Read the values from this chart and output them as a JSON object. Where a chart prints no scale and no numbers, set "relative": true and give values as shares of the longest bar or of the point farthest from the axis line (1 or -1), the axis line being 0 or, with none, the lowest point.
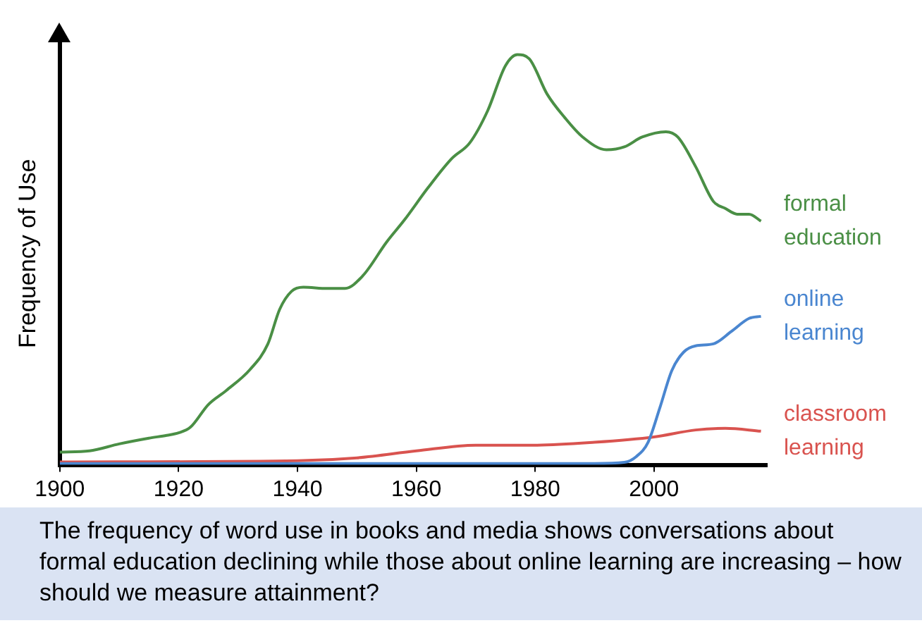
{
  "chart_data": {
    "type": "line",
    "relative": true,
    "ylabel": "Frequency of Use",
    "xlim": [
      1900,
      2019
    ],
    "xticks": [
      1900,
      1920,
      1940,
      1960,
      1980,
      2000
    ],
    "marker": "none",
    "legend": false,
    "annotations": [
      "The frequency of word use in books and media shows conversations about formal education declining while those about online learning are increasing – how should we measure attainment?"
    ],
    "series": [
      {
        "name": "formal education",
        "color": "#4a8f45",
        "x": [
          1900,
          1905,
          1910,
          1915,
          1918,
          1920,
          1922,
          1925,
          1928,
          1932,
          1935,
          1937,
          1939,
          1941,
          1945,
          1948,
          1951,
          1955,
          1958,
          1962,
          1966,
          1969,
          1972,
          1975,
          1977,
          1979,
          1982,
          1985,
          1988,
          1992,
          1995,
          1998,
          2002,
          2004,
          2007,
          2010,
          2012,
          2014,
          2016,
          2018
        ],
        "values": [
          0.031,
          0.034,
          0.051,
          0.065,
          0.072,
          0.078,
          0.092,
          0.147,
          0.181,
          0.232,
          0.294,
          0.379,
          0.423,
          0.433,
          0.43,
          0.43,
          0.461,
          0.543,
          0.597,
          0.676,
          0.747,
          0.785,
          0.863,
          0.973,
          1.0,
          0.99,
          0.904,
          0.846,
          0.799,
          0.768,
          0.775,
          0.799,
          0.812,
          0.799,
          0.727,
          0.642,
          0.625,
          0.611,
          0.611,
          0.594
        ]
      },
      {
        "name": "online learning",
        "color": "#4a86d0",
        "x": [
          1900,
          1950,
          1990,
          1995,
          1997,
          1999,
          2001,
          2003,
          2005,
          2007,
          2010,
          2013,
          2016,
          2018
        ],
        "values": [
          0.003,
          0.003,
          0.003,
          0.006,
          0.02,
          0.055,
          0.14,
          0.23,
          0.275,
          0.29,
          0.295,
          0.325,
          0.357,
          0.362
        ]
      },
      {
        "name": "classroom learning",
        "color": "#d9534f",
        "x": [
          1900,
          1940,
          1950,
          1960,
          1970,
          1980,
          1990,
          2000,
          2007,
          2012,
          2018
        ],
        "values": [
          0.007,
          0.01,
          0.017,
          0.034,
          0.048,
          0.048,
          0.055,
          0.068,
          0.085,
          0.089,
          0.082
        ]
      }
    ]
  }
}
